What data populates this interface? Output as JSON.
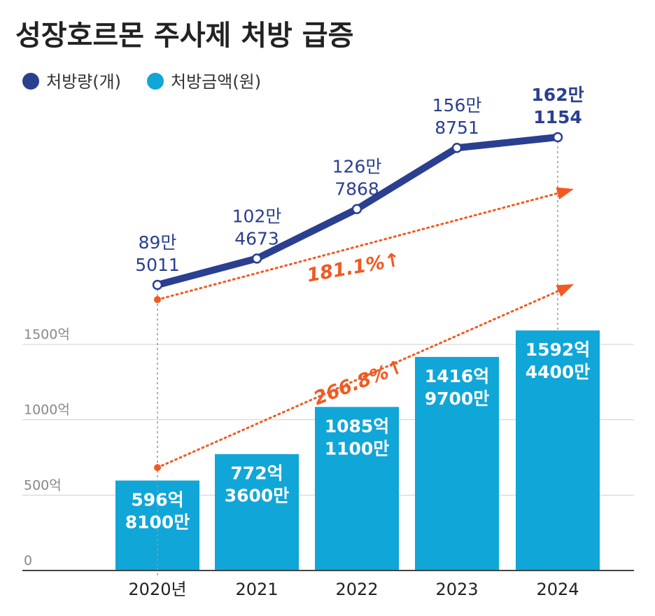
{
  "title": "성장호르몬 주사제 처방 급증",
  "legend": [
    {
      "label": "처방량(개)",
      "color": "#2a3f8f"
    },
    {
      "label": "처방금액(원)",
      "color": "#10a6d8"
    }
  ],
  "growth_labels": {
    "volume": "181.1%↑",
    "amount": "266.8%↑",
    "color": "#f05a22"
  },
  "chart_data": {
    "type": "bar+line",
    "categories": [
      "2020년",
      "2021",
      "2022",
      "2023",
      "2024"
    ],
    "series": [
      {
        "name": "처방금액(원)",
        "type": "bar",
        "unit": "억",
        "values": [
          596.81,
          772.36,
          1085.11,
          1416.97,
          1592.44
        ],
        "labels": [
          [
            "596억",
            "8100만"
          ],
          [
            "772억",
            "3600만"
          ],
          [
            "1085억",
            "1100만"
          ],
          [
            "1416억",
            "9700만"
          ],
          [
            "1592억",
            "4400만"
          ]
        ],
        "color": "#10a6d8"
      },
      {
        "name": "처방량(개)",
        "type": "line",
        "values": [
          895011,
          1024673,
          1267868,
          1568751,
          1621154
        ],
        "labels": [
          [
            "89만",
            "5011"
          ],
          [
            "102만",
            "4673"
          ],
          [
            "126만",
            "7868"
          ],
          [
            "156만",
            "8751"
          ],
          [
            "162만",
            "1154"
          ]
        ],
        "color": "#2a3f8f"
      }
    ],
    "y_ticks": [
      {
        "value": 0,
        "label": "0"
      },
      {
        "value": 500,
        "label": "500억"
      },
      {
        "value": 1000,
        "label": "1000억"
      },
      {
        "value": 1500,
        "label": "1500억"
      }
    ],
    "ylim": [
      0,
      1600
    ],
    "line_ylim": [
      700000,
      1700000
    ]
  }
}
